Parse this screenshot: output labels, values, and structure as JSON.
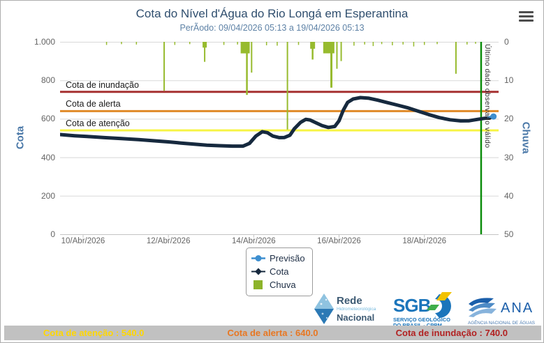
{
  "header": {
    "title": "Cota do Nível d'Água do Rio Longá em Esperantina",
    "subtitle": "PerÃodo: 09/04/2026 05:13 a 19/04/2026 05:13",
    "menu_icon": "hamburger-icon"
  },
  "chart_data": {
    "type": "line+bar",
    "title": "Cota do Nível d'Água do Rio Longá em Esperantina",
    "x": {
      "domain": [
        9.46,
        19.74
      ],
      "unit": "day of Abr/2026",
      "ticks": [
        {
          "d": 10,
          "label": "10/Abr/2026"
        },
        {
          "d": 12,
          "label": "12/Abr/2026"
        },
        {
          "d": 14,
          "label": "14/Abr/2026"
        },
        {
          "d": 16,
          "label": "16/Abr/2026"
        },
        {
          "d": 18,
          "label": "18/Abr/2026"
        }
      ]
    },
    "y_left": {
      "title": "Cota",
      "min": 0,
      "max": 1000,
      "tick_values": [
        0,
        200,
        400,
        600,
        800,
        1000
      ],
      "tick_labels": [
        "0",
        "200",
        "400",
        "600",
        "800",
        "1.000"
      ]
    },
    "y_right": {
      "title": "Chuva",
      "min": 0,
      "max": 50,
      "inverted": true,
      "tick_values": [
        0,
        10,
        20,
        30,
        40,
        50
      ],
      "tick_labels": [
        "0",
        "10",
        "20",
        "30",
        "40",
        "50"
      ]
    },
    "thresholds": [
      {
        "label": "Cota de atenção",
        "value": 540,
        "color": "#F7F444"
      },
      {
        "label": "Cota de alerta",
        "value": 640,
        "color": "#E08A28"
      },
      {
        "label": "Cota de inundação",
        "value": 740,
        "color": "#A63030"
      }
    ],
    "series": {
      "cota": {
        "name": "Cota",
        "color": "#16293E",
        "points": [
          [
            9.46,
            518
          ],
          [
            9.8,
            512
          ],
          [
            10.1,
            508
          ],
          [
            10.5,
            502
          ],
          [
            10.9,
            497
          ],
          [
            11.3,
            492
          ],
          [
            11.7,
            485
          ],
          [
            12.0,
            480
          ],
          [
            12.3,
            474
          ],
          [
            12.6,
            468
          ],
          [
            12.9,
            463
          ],
          [
            13.2,
            460
          ],
          [
            13.5,
            458
          ],
          [
            13.75,
            458
          ],
          [
            13.9,
            472
          ],
          [
            14.05,
            510
          ],
          [
            14.2,
            533
          ],
          [
            14.32,
            528
          ],
          [
            14.45,
            510
          ],
          [
            14.6,
            502
          ],
          [
            14.72,
            503
          ],
          [
            14.85,
            515
          ],
          [
            14.95,
            548
          ],
          [
            15.1,
            582
          ],
          [
            15.22,
            597
          ],
          [
            15.32,
            594
          ],
          [
            15.45,
            580
          ],
          [
            15.6,
            565
          ],
          [
            15.75,
            555
          ],
          [
            15.9,
            560
          ],
          [
            16.0,
            590
          ],
          [
            16.1,
            645
          ],
          [
            16.2,
            685
          ],
          [
            16.33,
            703
          ],
          [
            16.5,
            710
          ],
          [
            16.7,
            707
          ],
          [
            16.9,
            697
          ],
          [
            17.1,
            686
          ],
          [
            17.35,
            672
          ],
          [
            17.6,
            658
          ],
          [
            17.85,
            640
          ],
          [
            18.1,
            622
          ],
          [
            18.35,
            606
          ],
          [
            18.6,
            595
          ],
          [
            18.85,
            589
          ],
          [
            19.05,
            590
          ],
          [
            19.25,
            597
          ],
          [
            19.4,
            602
          ],
          [
            19.55,
            606
          ]
        ]
      },
      "previsao": {
        "name": "Previsão",
        "color": "#3E8FD0",
        "points": [
          [
            19.62,
            612
          ]
        ]
      },
      "chuva": {
        "name": "Chuva",
        "color": "#97BB2E",
        "axis": "right",
        "spikes": [
          [
            10.55,
            0.8,
            1.5
          ],
          [
            10.9,
            0.6,
            1.5
          ],
          [
            11.25,
            0.7,
            1.5
          ],
          [
            11.9,
            12.7,
            2
          ],
          [
            12.15,
            0.8,
            1.5
          ],
          [
            12.5,
            0.6,
            1.5
          ],
          [
            12.85,
            1.5,
            6
          ],
          [
            12.85,
            5.2,
            2
          ],
          [
            13.3,
            0.8,
            1.5
          ],
          [
            13.62,
            0.7,
            1.5
          ],
          [
            13.8,
            3,
            13
          ],
          [
            13.84,
            13.8,
            2.5
          ],
          [
            13.95,
            8,
            2
          ],
          [
            14.3,
            0.9,
            1.5
          ],
          [
            14.55,
            1,
            1.5
          ],
          [
            14.79,
            22.8,
            2
          ],
          [
            15.05,
            0.8,
            1.5
          ],
          [
            15.38,
            1.8,
            7
          ],
          [
            15.38,
            4.6,
            2.5
          ],
          [
            15.76,
            3,
            16
          ],
          [
            15.82,
            11.9,
            3
          ],
          [
            15.95,
            7,
            2
          ],
          [
            16.05,
            5,
            2
          ],
          [
            16.35,
            1,
            1.5
          ],
          [
            16.6,
            0.7,
            1.5
          ],
          [
            16.8,
            1.1,
            1.5
          ],
          [
            17.0,
            0.6,
            1.5
          ],
          [
            17.25,
            0.9,
            1.5
          ],
          [
            17.5,
            0.7,
            1.5
          ],
          [
            17.75,
            1.2,
            1.5
          ],
          [
            18.0,
            0.8,
            1.5
          ],
          [
            18.3,
            0.6,
            1.5
          ],
          [
            18.74,
            8.3,
            2
          ],
          [
            19.0,
            0.7,
            1.5
          ],
          [
            19.2,
            0.5,
            1.5
          ]
        ]
      }
    },
    "last_valid": {
      "d": 19.33,
      "label": "Último dado observado válido",
      "color": "#0B8C0B"
    },
    "legend": [
      {
        "label": "Previsão",
        "marker": "circle",
        "color": "#3E8FD0"
      },
      {
        "label": "Cota",
        "marker": "diamond",
        "color": "#16293E"
      },
      {
        "label": "Chuva",
        "marker": "square",
        "color": "#8DB32A"
      }
    ],
    "grid": true,
    "legend_position": "bottom-center"
  },
  "logos": {
    "rede": {
      "line1": "Rede",
      "line2": "Hidrometeorológica",
      "line3": "Nacional"
    },
    "sgb": {
      "acronym": "SGB",
      "line1": "SERVIÇO GEOLÓGICO",
      "line2": "DO BRASIL - CPRM"
    },
    "ana": {
      "acronym": "ANA",
      "line1": "AGÊNCIA NACIONAL DE ÁGUAS"
    }
  },
  "footer": {
    "attention": "Cota de atenção : 540.0",
    "alert": "Cota de alerta : 640.0",
    "flood": "Cota de inundação : 740.0",
    "colors": {
      "attention": "#FFD700",
      "alert": "#E87722",
      "flood": "#B22222"
    }
  }
}
